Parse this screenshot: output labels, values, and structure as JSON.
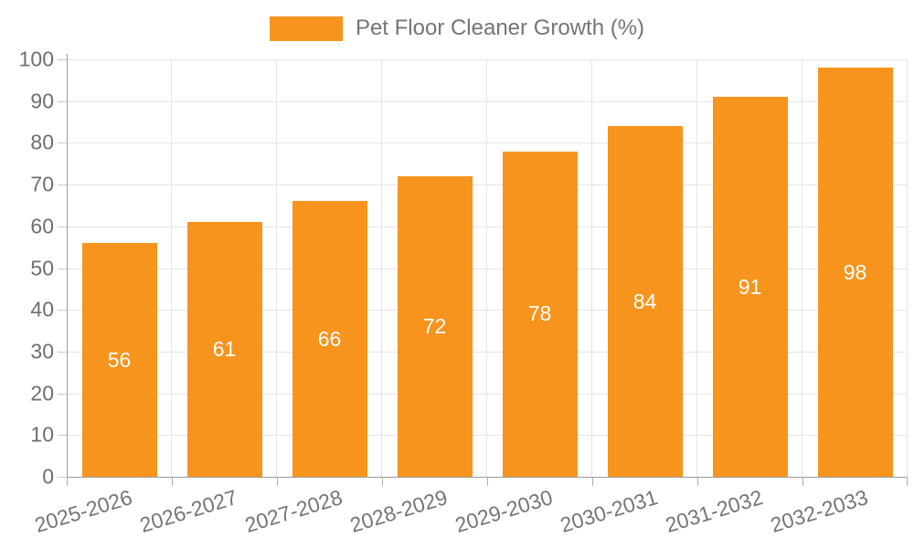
{
  "legend": {
    "label": "Pet Floor Cleaner Growth (%)",
    "swatch_color": "#F7941E"
  },
  "chart_data": {
    "type": "bar",
    "title": "",
    "xlabel": "",
    "ylabel": "",
    "categories": [
      "2025-2026",
      "2026-2027",
      "2027-2028",
      "2028-2029",
      "2029-2030",
      "2030-2031",
      "2031-2032",
      "2032-2033"
    ],
    "values": [
      56,
      61,
      66,
      72,
      78,
      84,
      91,
      98
    ],
    "series_name": "Pet Floor Cleaner Growth (%)",
    "value_labels": [
      "56",
      "61",
      "66",
      "72",
      "78",
      "84",
      "91",
      "98"
    ],
    "ylim": [
      0,
      100
    ],
    "y_tick_step": 10,
    "y_tick_labels": [
      "0",
      "10",
      "20",
      "30",
      "40",
      "50",
      "60",
      "70",
      "80",
      "90",
      "100"
    ],
    "grid": true,
    "legend_position": "top-center",
    "bar_color": "#F7941E",
    "value_label_color": "#ffffff",
    "axis_label_color": "#6E6E6E",
    "x_label_rotation_deg": 17
  }
}
